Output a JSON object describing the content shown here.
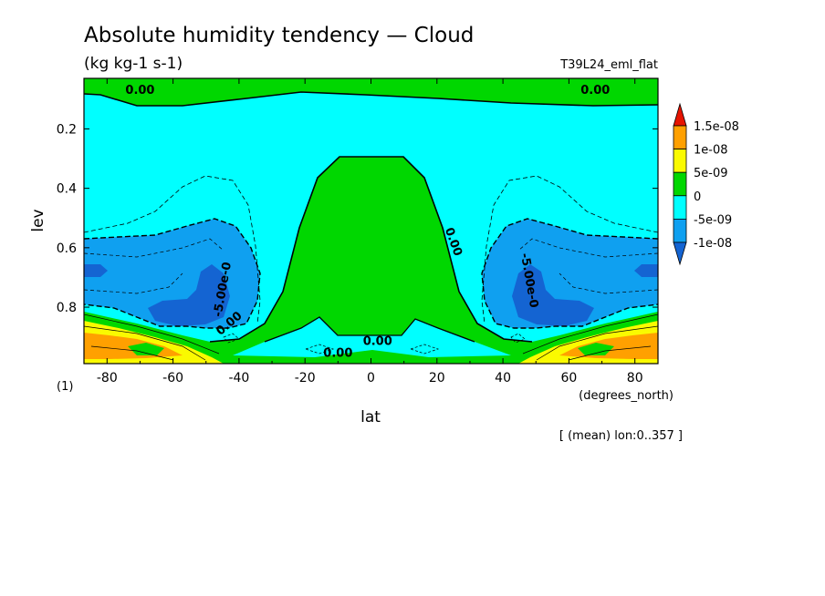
{
  "header": {
    "title": "Absolute humidity tendency — Cloud",
    "units": "(kg kg-1 s-1)",
    "experiment": "T39L24_eml_flat"
  },
  "footer": {
    "level_note": "(1)",
    "mean_note": "[ (mean) lon:0..357 ]"
  },
  "chart_data": {
    "type": "contour",
    "xlabel": "lat",
    "xunit": "(degrees_north)",
    "ylabel": "lev",
    "x_range": [
      -87,
      87
    ],
    "y_range": [
      0.03,
      0.99
    ],
    "y_inverted": true,
    "x_ticks": [
      -80,
      -60,
      -40,
      -20,
      0,
      20,
      40,
      60,
      80
    ],
    "y_ticks": [
      0.2,
      0.4,
      0.6,
      0.8
    ],
    "colorbar": {
      "levels": [
        -1.5e-08,
        -1e-08,
        -5e-09,
        0,
        5e-09,
        1e-08,
        1.5e-08
      ],
      "labels": [
        "1.5e-08",
        "1e-08",
        "5e-09",
        "0",
        "-5e-09",
        "-1e-08"
      ],
      "colors": [
        "#1464d2",
        "#0fa0f0",
        "#00ffff",
        "#00d700",
        "#fafa00",
        "#ffa000",
        "#e61400"
      ]
    },
    "contour_labels": [
      {
        "text": "0.00",
        "x": -70,
        "y": 0.07
      },
      {
        "text": "0.00",
        "x": 68,
        "y": 0.07
      },
      {
        "text": "0.00",
        "x": 25,
        "y": 0.58
      },
      {
        "text": "0.00",
        "x": -43,
        "y": 0.855
      },
      {
        "text": "0.00",
        "x": 2,
        "y": 0.915
      },
      {
        "text": "0.00",
        "x": -10,
        "y": 0.955
      },
      {
        "text": "-5.00e-0",
        "x": -45,
        "y": 0.74
      },
      {
        "text": "-5.00e-0",
        "x": 48,
        "y": 0.71
      }
    ]
  }
}
